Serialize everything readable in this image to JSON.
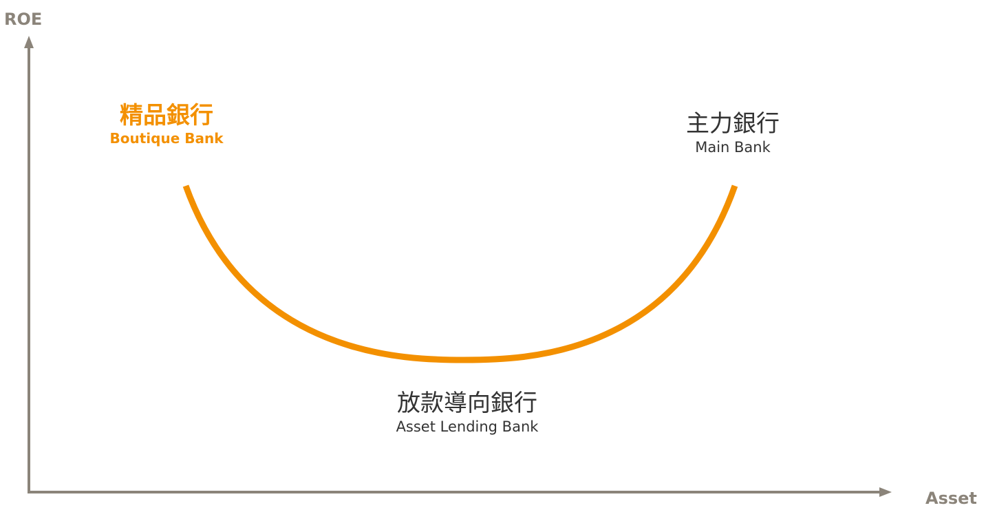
{
  "axes": {
    "y_label": "ROE",
    "x_label": "Asset"
  },
  "nodes": {
    "boutique": {
      "zh": "精品銀行",
      "en": "Boutique Bank"
    },
    "main": {
      "zh": "主力銀行",
      "en": "Main Bank"
    },
    "lending": {
      "zh": "放款導向銀行",
      "en": "Asset Lending Bank"
    }
  },
  "colors": {
    "axis": "#8b847a",
    "accent": "#f39000",
    "text": "#333333"
  }
}
